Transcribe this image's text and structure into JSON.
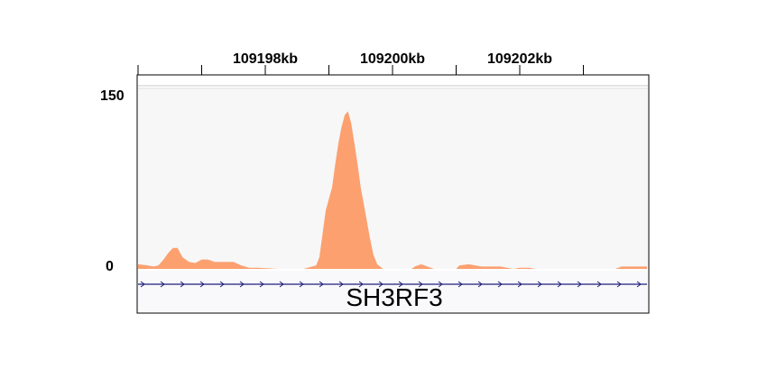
{
  "chart_data": {
    "type": "area",
    "title": "",
    "xlabel": "",
    "ylabel": "",
    "x_unit": "kb",
    "xlim": [
      109196.0,
      109204.0
    ],
    "ylim": [
      0,
      150
    ],
    "y_tick_labels": [
      "150",
      "0"
    ],
    "x_ticks": [
      {
        "value": 109197,
        "label": ""
      },
      {
        "value": 109198,
        "label": "109198kb"
      },
      {
        "value": 109199,
        "label": ""
      },
      {
        "value": 109200,
        "label": "109200kb"
      },
      {
        "value": 109201,
        "label": ""
      },
      {
        "value": 109202,
        "label": "109202kb"
      },
      {
        "value": 109203,
        "label": ""
      }
    ],
    "grid": false,
    "fill_color": "#fca070",
    "gene_color": "#1f1f7a",
    "series": [
      {
        "values": [
          [
            109196.0,
            4
          ],
          [
            109196.15,
            3
          ],
          [
            109196.25,
            2
          ],
          [
            109196.32,
            3
          ],
          [
            109196.4,
            8
          ],
          [
            109196.48,
            14
          ],
          [
            109196.55,
            18
          ],
          [
            109196.62,
            18
          ],
          [
            109196.7,
            10
          ],
          [
            109196.8,
            6
          ],
          [
            109196.9,
            5
          ],
          [
            109197.0,
            8
          ],
          [
            109197.1,
            8
          ],
          [
            109197.2,
            6
          ],
          [
            109197.3,
            6
          ],
          [
            109197.4,
            6
          ],
          [
            109197.5,
            6
          ],
          [
            109197.62,
            3
          ],
          [
            109197.75,
            1
          ],
          [
            109197.9,
            1
          ],
          [
            109198.2,
            0
          ],
          [
            109198.6,
            0
          ],
          [
            109198.8,
            3
          ],
          [
            109198.85,
            10
          ],
          [
            109198.9,
            30
          ],
          [
            109198.95,
            50
          ],
          [
            109199.0,
            60
          ],
          [
            109199.05,
            70
          ],
          [
            109199.1,
            90
          ],
          [
            109199.15,
            108
          ],
          [
            109199.2,
            122
          ],
          [
            109199.25,
            132
          ],
          [
            109199.3,
            135
          ],
          [
            109199.35,
            125
          ],
          [
            109199.4,
            108
          ],
          [
            109199.45,
            90
          ],
          [
            109199.5,
            70
          ],
          [
            109199.55,
            55
          ],
          [
            109199.6,
            40
          ],
          [
            109199.65,
            25
          ],
          [
            109199.7,
            12
          ],
          [
            109199.76,
            4
          ],
          [
            109199.85,
            0
          ],
          [
            109200.3,
            0
          ],
          [
            109200.35,
            2
          ],
          [
            109200.45,
            4
          ],
          [
            109200.55,
            2
          ],
          [
            109200.65,
            0
          ],
          [
            109201.0,
            0
          ],
          [
            109201.05,
            3
          ],
          [
            109201.2,
            4
          ],
          [
            109201.3,
            3
          ],
          [
            109201.4,
            2
          ],
          [
            109201.55,
            2
          ],
          [
            109201.7,
            2
          ],
          [
            109201.8,
            1
          ],
          [
            109201.9,
            0
          ],
          [
            109202.0,
            1
          ],
          [
            109202.15,
            1
          ],
          [
            109202.25,
            0
          ],
          [
            109203.5,
            0
          ],
          [
            109203.6,
            2
          ],
          [
            109203.8,
            2
          ],
          [
            109204.0,
            2
          ]
        ]
      }
    ]
  },
  "gene": {
    "name": "SH3RF3",
    "strand": "+"
  }
}
